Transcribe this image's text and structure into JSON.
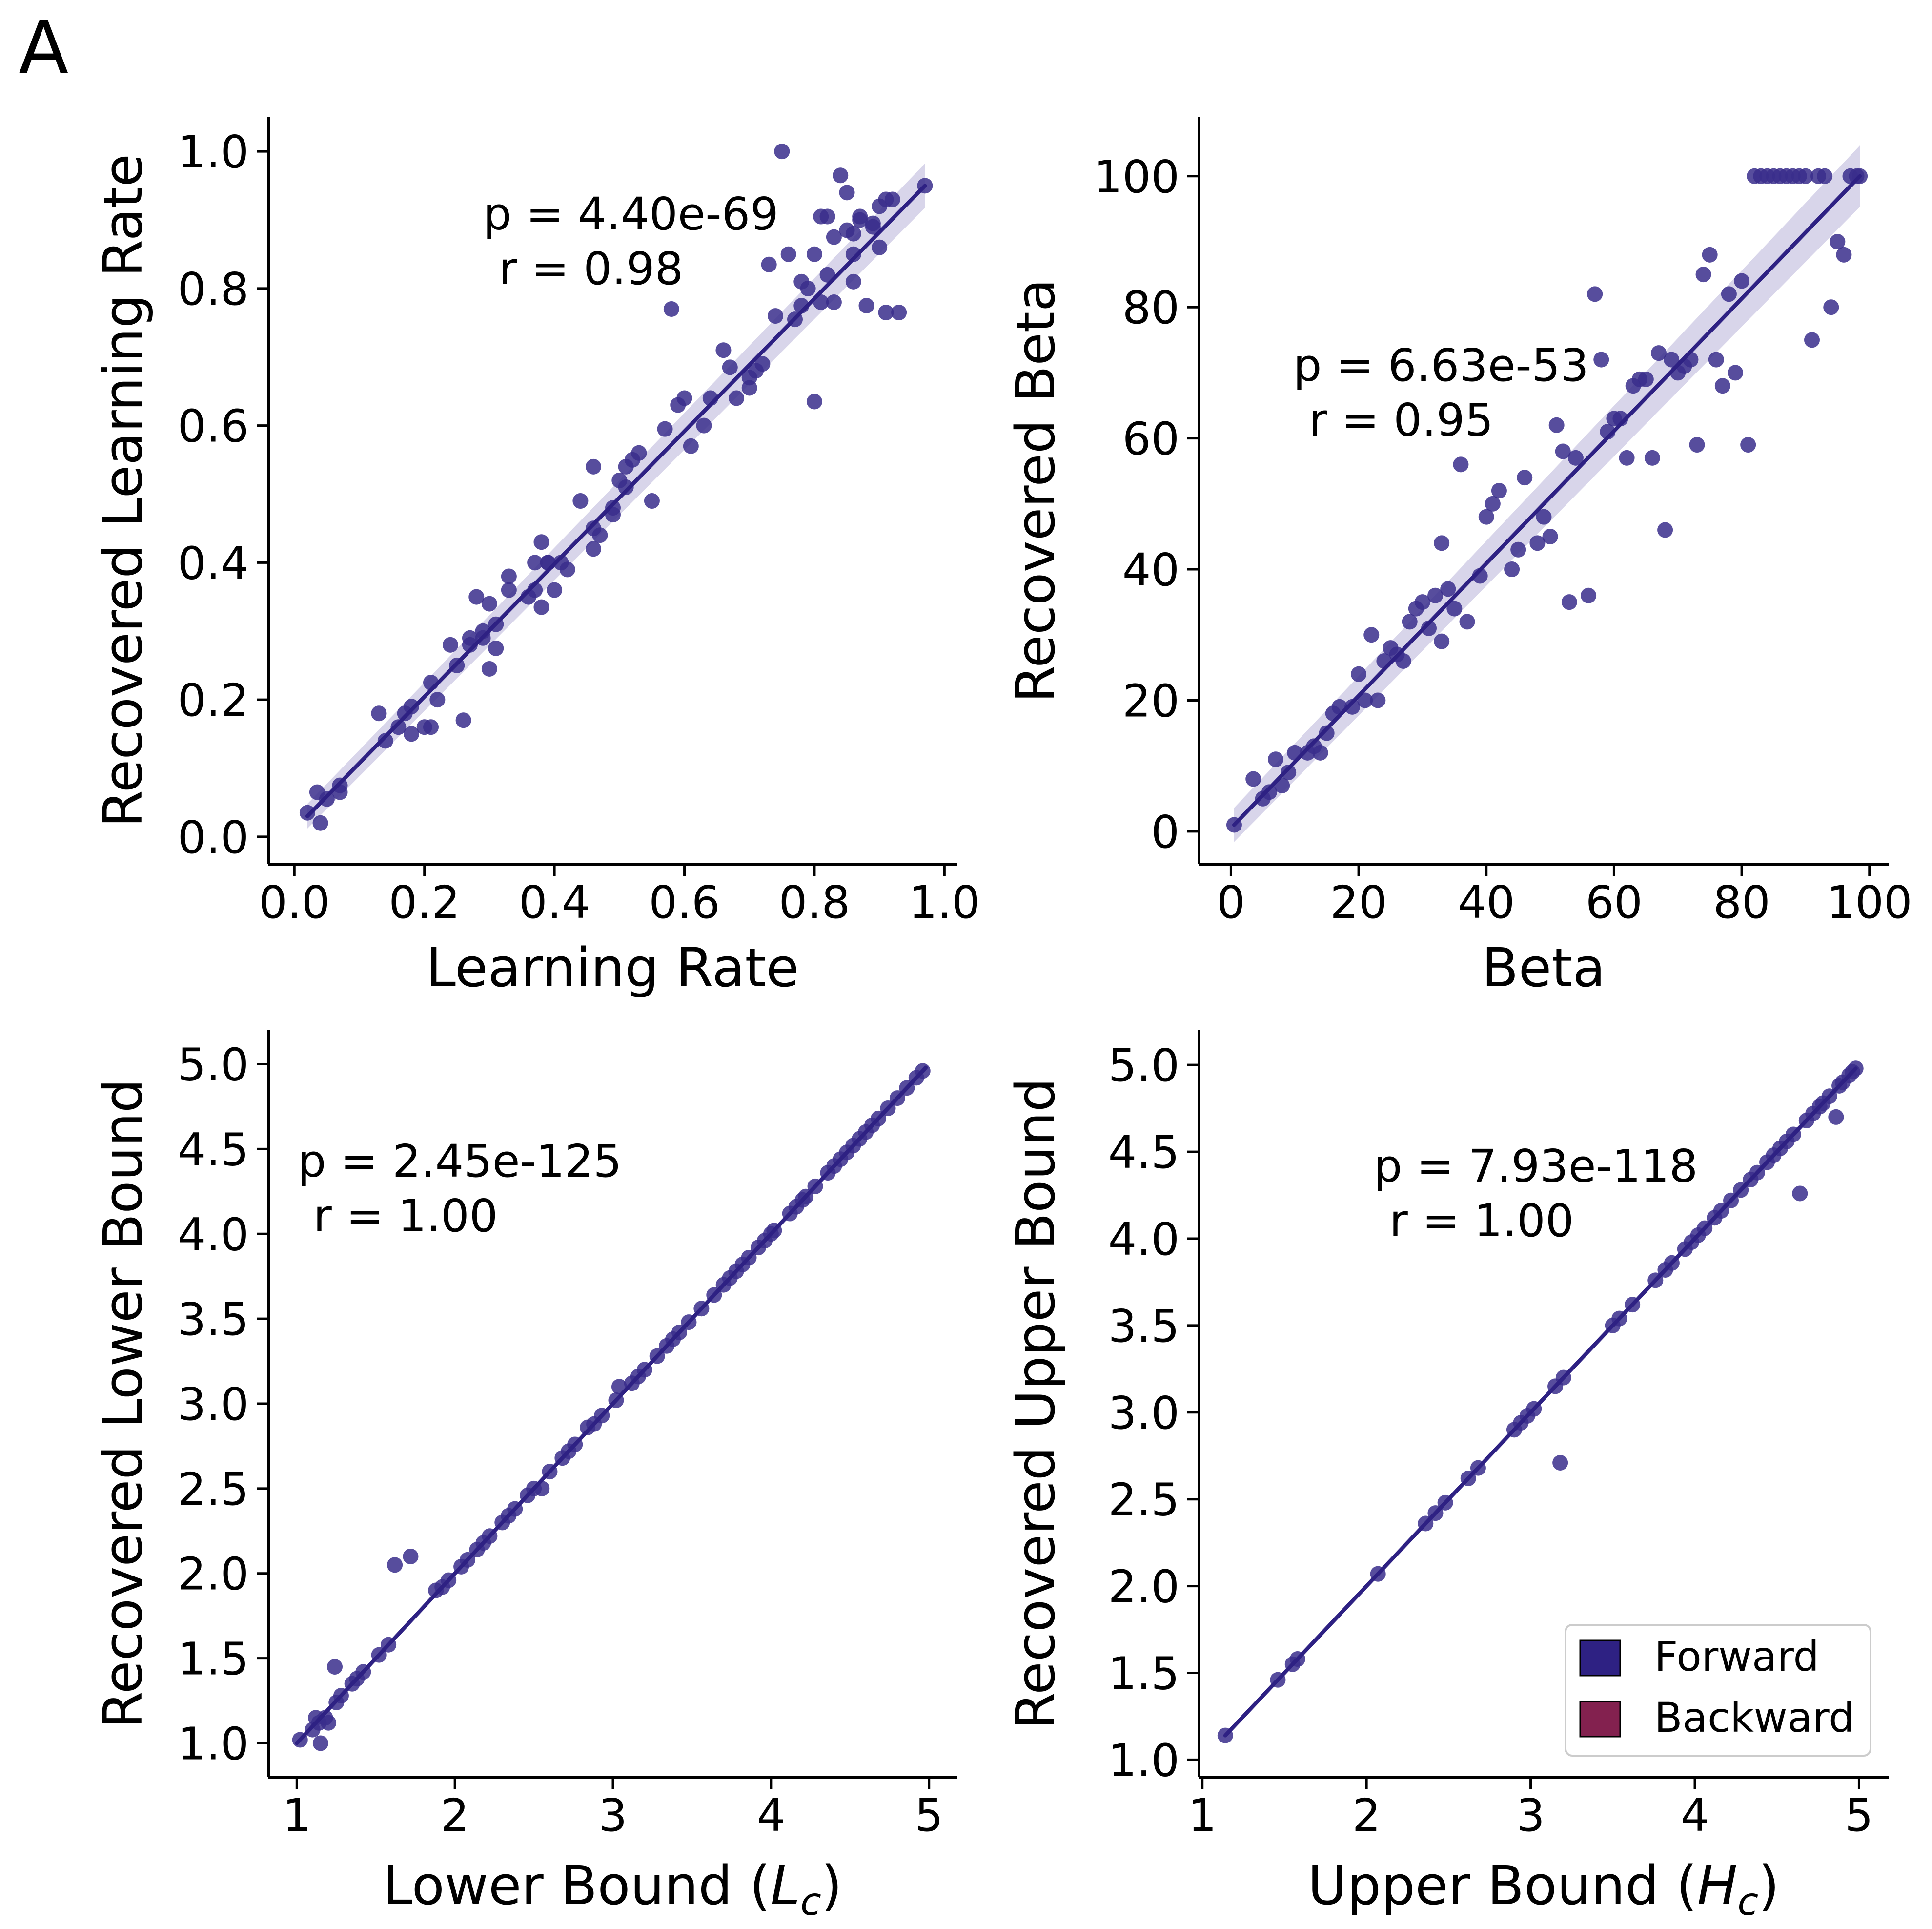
{
  "panel_label": "A",
  "colors": {
    "forward": "#2e2183",
    "backward": "#83214f",
    "point": "#3a2e8c",
    "band": "#8f88c4"
  },
  "legend": {
    "items": [
      {
        "label": "Forward",
        "color": "#2e2183"
      },
      {
        "label": "Backward",
        "color": "#83214f"
      }
    ]
  },
  "chart_data": [
    {
      "type": "scatter",
      "xlabel": "Learning Rate",
      "ylabel": "Recovered Learning Rate",
      "xlim": [
        -0.04,
        1.02
      ],
      "ylim": [
        -0.04,
        1.05
      ],
      "xticks": [
        0.0,
        0.2,
        0.4,
        0.6,
        0.8,
        1.0
      ],
      "yticks": [
        0.0,
        0.2,
        0.4,
        0.6,
        0.8,
        1.0
      ],
      "xtick_labels": [
        "0.0",
        "0.2",
        "0.4",
        "0.6",
        "0.8",
        "1.0"
      ],
      "ytick_labels": [
        "0.0",
        "0.2",
        "0.4",
        "0.6",
        "0.8",
        "1.0"
      ],
      "annotation": {
        "p": "p = 4.40e-69",
        "r": "r = 0.98"
      },
      "fit": {
        "x": [
          0.02,
          0.97
        ],
        "y": [
          0.03,
          0.95
        ],
        "band": 0.018
      },
      "x": [
        0.02,
        0.035,
        0.04,
        0.05,
        0.07,
        0.07,
        0.13,
        0.14,
        0.16,
        0.17,
        0.18,
        0.18,
        0.2,
        0.21,
        0.21,
        0.22,
        0.24,
        0.25,
        0.26,
        0.27,
        0.27,
        0.28,
        0.29,
        0.29,
        0.3,
        0.3,
        0.31,
        0.31,
        0.33,
        0.33,
        0.36,
        0.37,
        0.37,
        0.38,
        0.38,
        0.39,
        0.39,
        0.4,
        0.41,
        0.42,
        0.44,
        0.46,
        0.46,
        0.46,
        0.47,
        0.49,
        0.49,
        0.5,
        0.51,
        0.51,
        0.52,
        0.53,
        0.55,
        0.57,
        0.58,
        0.59,
        0.6,
        0.61,
        0.63,
        0.64,
        0.66,
        0.67,
        0.68,
        0.7,
        0.7,
        0.71,
        0.72,
        0.73,
        0.74,
        0.75,
        0.76,
        0.77,
        0.78,
        0.78,
        0.79,
        0.8,
        0.8,
        0.81,
        0.81,
        0.82,
        0.82,
        0.83,
        0.83,
        0.84,
        0.85,
        0.85,
        0.86,
        0.86,
        0.86,
        0.87,
        0.87,
        0.88,
        0.89,
        0.89,
        0.9,
        0.9,
        0.91,
        0.91,
        0.92,
        0.93,
        0.97
      ],
      "y": [
        0.035,
        0.065,
        0.02,
        0.055,
        0.065,
        0.075,
        0.18,
        0.14,
        0.16,
        0.18,
        0.19,
        0.15,
        0.16,
        0.225,
        0.16,
        0.2,
        0.28,
        0.25,
        0.17,
        0.29,
        0.28,
        0.35,
        0.29,
        0.3,
        0.245,
        0.34,
        0.275,
        0.31,
        0.38,
        0.36,
        0.35,
        0.4,
        0.36,
        0.335,
        0.43,
        0.4,
        0.4,
        0.36,
        0.4,
        0.39,
        0.49,
        0.45,
        0.54,
        0.42,
        0.44,
        0.47,
        0.48,
        0.52,
        0.51,
        0.54,
        0.55,
        0.56,
        0.49,
        0.595,
        0.77,
        0.63,
        0.64,
        0.57,
        0.6,
        0.64,
        0.71,
        0.685,
        0.64,
        0.655,
        0.67,
        0.68,
        0.69,
        0.835,
        0.76,
        1.0,
        0.85,
        0.755,
        0.81,
        0.775,
        0.8,
        0.635,
        0.85,
        0.905,
        0.78,
        0.905,
        0.82,
        0.875,
        0.78,
        0.965,
        0.94,
        0.885,
        0.85,
        0.81,
        0.88,
        0.905,
        0.9,
        0.775,
        0.895,
        0.89,
        0.86,
        0.92,
        0.93,
        0.765,
        0.93,
        0.765,
        0.95
      ]
    },
    {
      "type": "scatter",
      "xlabel": "Beta",
      "ylabel": "Recovered Beta",
      "xlim": [
        -5,
        103
      ],
      "ylim": [
        -5,
        109
      ],
      "xticks": [
        0,
        20,
        40,
        60,
        80,
        100
      ],
      "yticks": [
        0,
        20,
        40,
        60,
        80,
        100
      ],
      "xtick_labels": [
        "0",
        "20",
        "40",
        "60",
        "80",
        "100"
      ],
      "ytick_labels": [
        "0",
        "20",
        "40",
        "60",
        "80",
        "100"
      ],
      "annotation": {
        "p": "p = 6.63e-53",
        "r": "r = 0.95"
      },
      "fit": {
        "x": [
          0.5,
          98.5
        ],
        "y": [
          1,
          100
        ],
        "band": 2.6
      },
      "x": [
        0.5,
        3.5,
        5,
        6,
        7,
        8,
        9,
        10,
        12,
        13,
        14,
        15,
        16,
        17,
        19,
        20,
        21,
        22,
        23,
        24,
        25,
        26,
        27,
        28,
        29,
        30,
        31,
        32,
        33,
        33,
        34,
        35,
        36,
        37,
        39,
        40,
        41,
        42,
        44,
        45,
        46,
        48,
        49,
        50,
        51,
        52,
        53,
        54,
        56,
        57,
        58,
        59,
        60,
        61,
        62,
        63,
        64,
        65,
        66,
        67,
        68,
        69,
        70,
        71,
        72,
        73,
        74,
        75,
        76,
        77,
        78,
        79,
        80,
        81,
        82,
        83,
        84,
        85,
        86,
        87,
        88,
        89,
        90,
        91,
        92,
        93,
        94,
        95,
        96,
        97,
        98,
        98.5
      ],
      "y": [
        1,
        8,
        5,
        6,
        11,
        7,
        9,
        12,
        12,
        13,
        12,
        15,
        18,
        19,
        19,
        24,
        20,
        30,
        20,
        26,
        28,
        27,
        26,
        32,
        34,
        35,
        31,
        36,
        29,
        44,
        37,
        34,
        56,
        32,
        39,
        48,
        50,
        52,
        40,
        43,
        54,
        44,
        48,
        45,
        62,
        58,
        35,
        57,
        36,
        82,
        72,
        61,
        63,
        63,
        57,
        68,
        69,
        69,
        57,
        73,
        46,
        72,
        70,
        71,
        72,
        59,
        85,
        88,
        72,
        68,
        82,
        70,
        84,
        59,
        100,
        100,
        100,
        100,
        100,
        100,
        100,
        100,
        100,
        75,
        100,
        100,
        80,
        90,
        88,
        100,
        100,
        100
      ]
    },
    {
      "type": "scatter",
      "xlabel": "Lower Bound (L_c)",
      "ylabel": "Recovered Lower Bound",
      "xlim": [
        0.82,
        5.18
      ],
      "ylim": [
        0.8,
        5.2
      ],
      "xticks": [
        1,
        2,
        3,
        4,
        5
      ],
      "yticks": [
        1.0,
        1.5,
        2.0,
        2.5,
        3.0,
        3.5,
        4.0,
        4.5,
        5.0
      ],
      "xtick_labels": [
        "1",
        "2",
        "3",
        "4",
        "5"
      ],
      "ytick_labels": [
        "1.0",
        "1.5",
        "2.0",
        "2.5",
        "3.0",
        "3.5",
        "4.0",
        "4.5",
        "5.0"
      ],
      "annotation": {
        "p": "p = 2.45e-125",
        "r": "r = 1.00"
      },
      "fit": {
        "x": [
          1.0,
          4.98
        ],
        "y": [
          1.0,
          4.98
        ],
        "band": 0.012
      },
      "x": [
        1.02,
        1.1,
        1.12,
        1.14,
        1.15,
        1.18,
        1.2,
        1.24,
        1.25,
        1.28,
        1.35,
        1.38,
        1.42,
        1.52,
        1.58,
        1.62,
        1.72,
        1.88,
        1.92,
        1.96,
        2.04,
        2.08,
        2.14,
        2.18,
        2.22,
        2.3,
        2.34,
        2.38,
        2.46,
        2.5,
        2.55,
        2.6,
        2.68,
        2.72,
        2.76,
        2.84,
        2.88,
        2.93,
        3.02,
        3.04,
        3.12,
        3.16,
        3.2,
        3.28,
        3.34,
        3.38,
        3.42,
        3.48,
        3.56,
        3.64,
        3.7,
        3.74,
        3.78,
        3.82,
        3.86,
        3.92,
        3.96,
        4.0,
        4.02,
        4.12,
        4.16,
        4.2,
        4.22,
        4.28,
        4.36,
        4.4,
        4.44,
        4.48,
        4.52,
        4.56,
        4.6,
        4.64,
        4.68,
        4.74,
        4.8,
        4.86,
        4.92,
        4.96
      ],
      "y": [
        1.02,
        1.08,
        1.15,
        1.12,
        1.0,
        1.15,
        1.12,
        1.45,
        1.24,
        1.28,
        1.35,
        1.38,
        1.42,
        1.52,
        1.58,
        2.05,
        2.1,
        1.9,
        1.92,
        1.96,
        2.04,
        2.08,
        2.14,
        2.18,
        2.22,
        2.3,
        2.34,
        2.38,
        2.46,
        2.5,
        2.5,
        2.6,
        2.68,
        2.72,
        2.76,
        2.86,
        2.88,
        2.93,
        3.02,
        3.1,
        3.12,
        3.16,
        3.2,
        3.28,
        3.34,
        3.38,
        3.42,
        3.48,
        3.56,
        3.64,
        3.7,
        3.74,
        3.78,
        3.82,
        3.86,
        3.92,
        3.96,
        4.0,
        4.02,
        4.12,
        4.16,
        4.2,
        4.22,
        4.28,
        4.36,
        4.4,
        4.44,
        4.48,
        4.52,
        4.56,
        4.6,
        4.64,
        4.68,
        4.74,
        4.8,
        4.86,
        4.92,
        4.96
      ]
    },
    {
      "type": "scatter",
      "xlabel": "Upper Bound (H_c)",
      "ylabel": "Recovered Upper Bound",
      "xlim": [
        0.98,
        5.18
      ],
      "ylim": [
        0.9,
        5.2
      ],
      "xticks": [
        1,
        2,
        3,
        4,
        5
      ],
      "yticks": [
        1.0,
        1.5,
        2.0,
        2.5,
        3.0,
        3.5,
        4.0,
        4.5,
        5.0
      ],
      "xtick_labels": [
        "1",
        "2",
        "3",
        "4",
        "5"
      ],
      "ytick_labels": [
        "1.0",
        "1.5",
        "2.0",
        "2.5",
        "3.0",
        "3.5",
        "4.0",
        "4.5",
        "5.0"
      ],
      "annotation": {
        "p": "p = 7.93e-118",
        "r": "r = 1.00"
      },
      "fit": {
        "x": [
          1.14,
          4.98
        ],
        "y": [
          1.14,
          4.98
        ],
        "band": 0.012
      },
      "x": [
        1.14,
        1.46,
        1.55,
        1.58,
        2.07,
        2.36,
        2.42,
        2.48,
        2.62,
        2.68,
        2.9,
        2.94,
        2.98,
        3.02,
        3.15,
        3.18,
        3.2,
        3.5,
        3.54,
        3.62,
        3.76,
        3.82,
        3.86,
        3.94,
        3.98,
        4.02,
        4.06,
        4.12,
        4.16,
        4.22,
        4.28,
        4.34,
        4.38,
        4.44,
        4.48,
        4.52,
        4.56,
        4.6,
        4.64,
        4.68,
        4.72,
        4.76,
        4.78,
        4.82,
        4.86,
        4.88,
        4.9,
        4.94,
        4.96,
        4.98
      ],
      "y": [
        1.14,
        1.46,
        1.55,
        1.58,
        2.07,
        2.36,
        2.42,
        2.48,
        2.62,
        2.68,
        2.9,
        2.94,
        2.98,
        3.02,
        3.15,
        2.71,
        3.2,
        3.5,
        3.54,
        3.62,
        3.76,
        3.82,
        3.86,
        3.94,
        3.98,
        4.02,
        4.06,
        4.12,
        4.16,
        4.22,
        4.28,
        4.34,
        4.38,
        4.44,
        4.48,
        4.52,
        4.56,
        4.6,
        4.26,
        4.68,
        4.72,
        4.76,
        4.78,
        4.82,
        4.7,
        4.88,
        4.9,
        4.94,
        4.96,
        4.98
      ]
    }
  ]
}
